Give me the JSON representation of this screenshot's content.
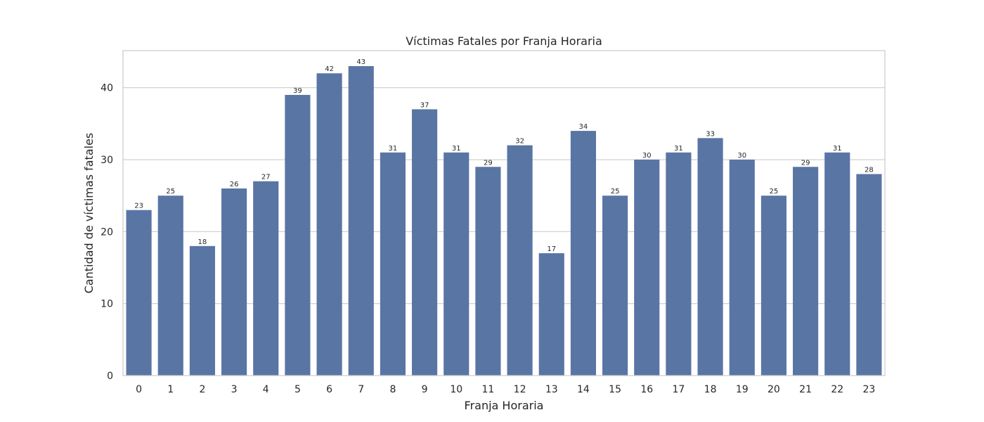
{
  "chart_data": {
    "type": "bar",
    "title": "Víctimas Fatales por Franja Horaria",
    "xlabel": "Franja Horaria",
    "ylabel": "Cantidad de víctimas fatales",
    "categories": [
      "0",
      "1",
      "2",
      "3",
      "4",
      "5",
      "6",
      "7",
      "8",
      "9",
      "10",
      "11",
      "12",
      "13",
      "14",
      "15",
      "16",
      "17",
      "18",
      "19",
      "20",
      "21",
      "22",
      "23"
    ],
    "values": [
      23,
      25,
      18,
      26,
      27,
      39,
      42,
      43,
      31,
      37,
      31,
      29,
      32,
      17,
      34,
      25,
      30,
      31,
      33,
      30,
      25,
      29,
      31,
      28
    ],
    "ylim": [
      0,
      45.15
    ],
    "yticks": [
      0,
      10,
      20,
      30,
      40
    ],
    "grid": "horizontal",
    "legend": "none",
    "colors": {
      "bar": "#5975a4",
      "grid": "#cccccc",
      "frame": "#cccccc",
      "text": "#262626"
    }
  }
}
